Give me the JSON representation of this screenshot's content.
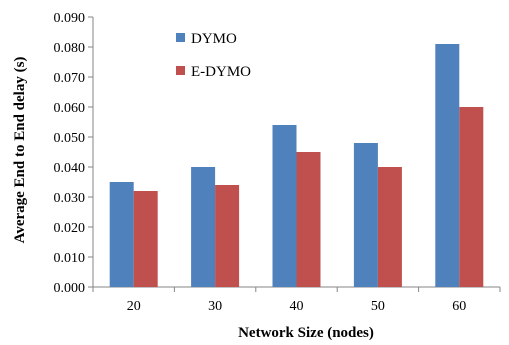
{
  "chart_data": {
    "type": "bar",
    "categories": [
      "20",
      "30",
      "40",
      "50",
      "60"
    ],
    "series": [
      {
        "name": "DYMO",
        "values": [
          0.035,
          0.04,
          0.054,
          0.048,
          0.081
        ],
        "color": "#4f81bd"
      },
      {
        "name": "E-DYMO",
        "values": [
          0.032,
          0.034,
          0.045,
          0.04,
          0.06
        ],
        "color": "#c0504d"
      }
    ],
    "xlabel": "Network  Size (nodes)",
    "ylabel": "Average End to End delay (s)",
    "ylim": [
      0,
      0.09
    ],
    "yticks": [
      "0.000",
      "0.010",
      "0.020",
      "0.030",
      "0.040",
      "0.050",
      "0.060",
      "0.070",
      "0.080",
      "0.090"
    ],
    "grid": false,
    "legend_placement": "top-center"
  }
}
